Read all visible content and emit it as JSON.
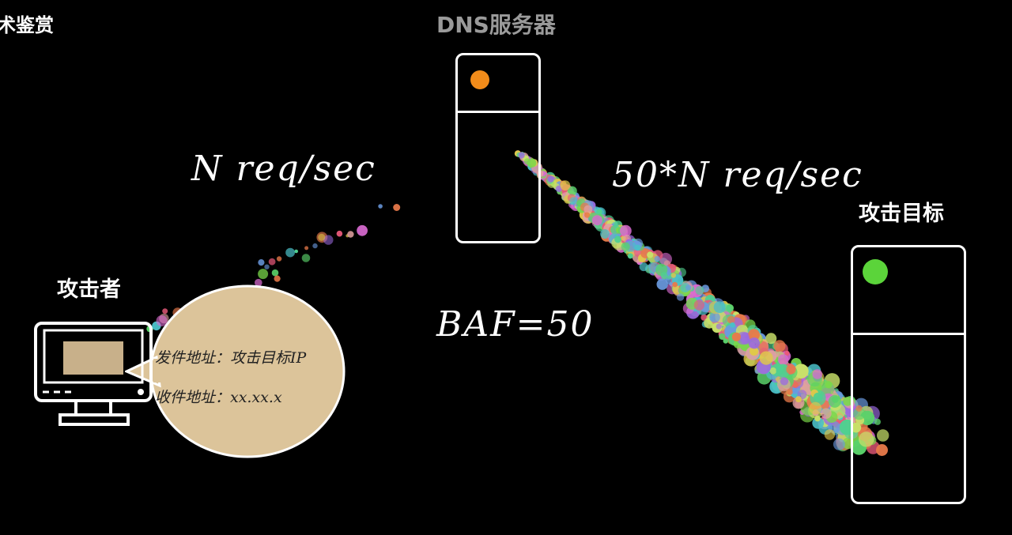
{
  "header": {
    "corner_text": "术鉴赏",
    "dns_title": "DNS服务器"
  },
  "labels": {
    "attacker": "攻击者",
    "target": "攻击目标",
    "request_rate": "N req/sec",
    "amplified_rate": "50*N req/sec",
    "baf": "BAF=50"
  },
  "envelope": {
    "sender": "发件地址：攻击目标IP",
    "receiver": "收件地址：xx.xx.x"
  },
  "colors": {
    "dns_led": "#f28c1a",
    "target_led": "#5bd43a",
    "bubble_fill": "#dcc49a",
    "stamp_fill": "#c8b08a"
  }
}
